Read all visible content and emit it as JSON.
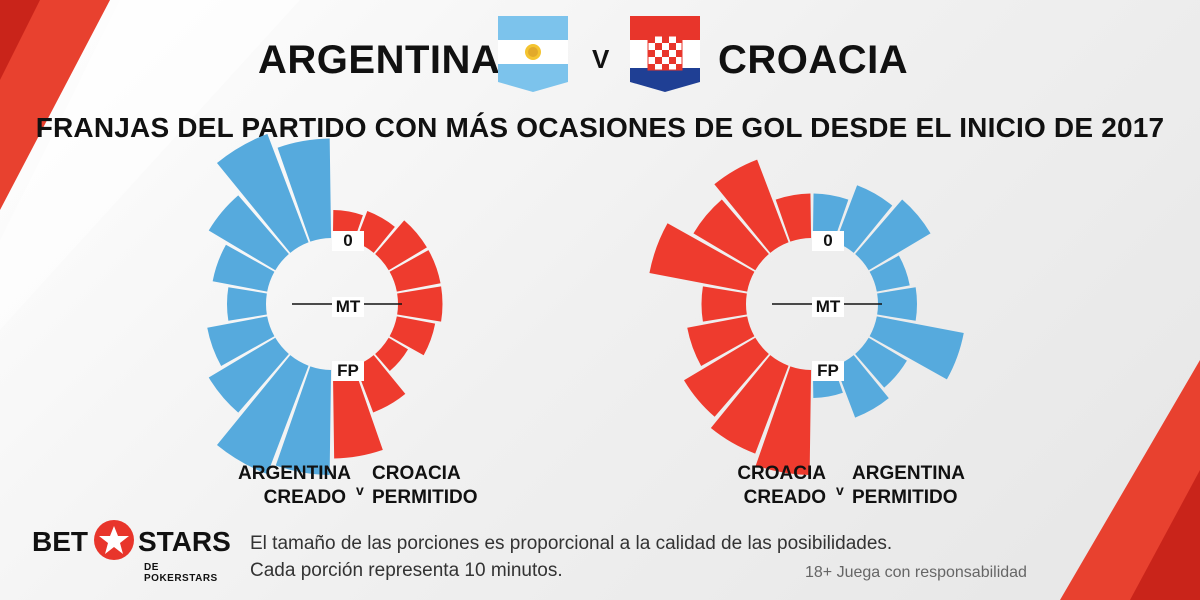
{
  "header": {
    "team_a": "ARGENTINA",
    "team_b": "CROACIA",
    "vs": "V",
    "subtitle": "FRANJAS DEL PARTIDO CON MÁS OCASIONES DE GOL DESDE EL INICIO DE 2017"
  },
  "colors": {
    "argentina": "#56aadd",
    "croacia": "#ee3b2e"
  },
  "chart_data": [
    {
      "type": "radial-bar",
      "markers": {
        "start": "0",
        "half": "MT",
        "end": "FP"
      },
      "left_series": {
        "name": "ARGENTINA CREADO",
        "color": "#56aadd",
        "slices": [
          "0-10",
          "10-20",
          "20-30",
          "30-40",
          "40-50",
          "50-60",
          "60-70",
          "70-80",
          "80-90"
        ],
        "values": [
          0.85,
          1.0,
          0.65,
          0.45,
          0.3,
          0.5,
          0.65,
          1.0,
          0.9
        ]
      },
      "right_series": {
        "name": "CROACIA PERMITIDO",
        "color": "#ee3b2e",
        "slices": [
          "0-10",
          "10-20",
          "20-30",
          "30-40",
          "40-50",
          "50-60",
          "60-70",
          "70-80",
          "80-90"
        ],
        "values": [
          0.2,
          0.25,
          0.35,
          0.35,
          0.35,
          0.3,
          0.15,
          0.4,
          0.75
        ]
      },
      "labels": {
        "left_line1": "ARGENTINA",
        "left_line2": "CREADO",
        "v": "v",
        "right_line1": "CROACIA",
        "right_line2": "PERMITIDO"
      }
    },
    {
      "type": "radial-bar",
      "markers": {
        "start": "0",
        "half": "MT",
        "end": "FP"
      },
      "left_series": {
        "name": "CROACIA CREADO",
        "color": "#ee3b2e",
        "slices": [
          "0-10",
          "10-20",
          "20-30",
          "30-40",
          "40-50",
          "50-60",
          "60-70",
          "70-80",
          "80-90"
        ],
        "values": [
          0.35,
          0.75,
          0.6,
          0.85,
          0.35,
          0.5,
          0.7,
          0.8,
          0.9
        ]
      },
      "right_series": {
        "name": "ARGENTINA PERMITIDO",
        "color": "#56aadd",
        "slices": [
          "0-10",
          "10-20",
          "20-30",
          "30-40",
          "40-50",
          "50-60",
          "60-70",
          "70-80",
          "80-90"
        ],
        "values": [
          0.35,
          0.5,
          0.6,
          0.25,
          0.3,
          0.75,
          0.35,
          0.45,
          0.2
        ]
      },
      "labels": {
        "left_line1": "CROACIA",
        "left_line2": "CREADO",
        "v": "v",
        "right_line1": "ARGENTINA",
        "right_line2": "PERMITIDO"
      }
    }
  ],
  "footer": {
    "logo_main_a": "BET",
    "logo_main_b": "STARS",
    "logo_sub": "DE POKERSTARS",
    "note_line1": "El tamaño de las porciones es proporcional a la calidad de las posibilidades.",
    "note_line2": "Cada porción representa 10 minutos.",
    "responsible": "18+ Juega con responsabilidad"
  }
}
